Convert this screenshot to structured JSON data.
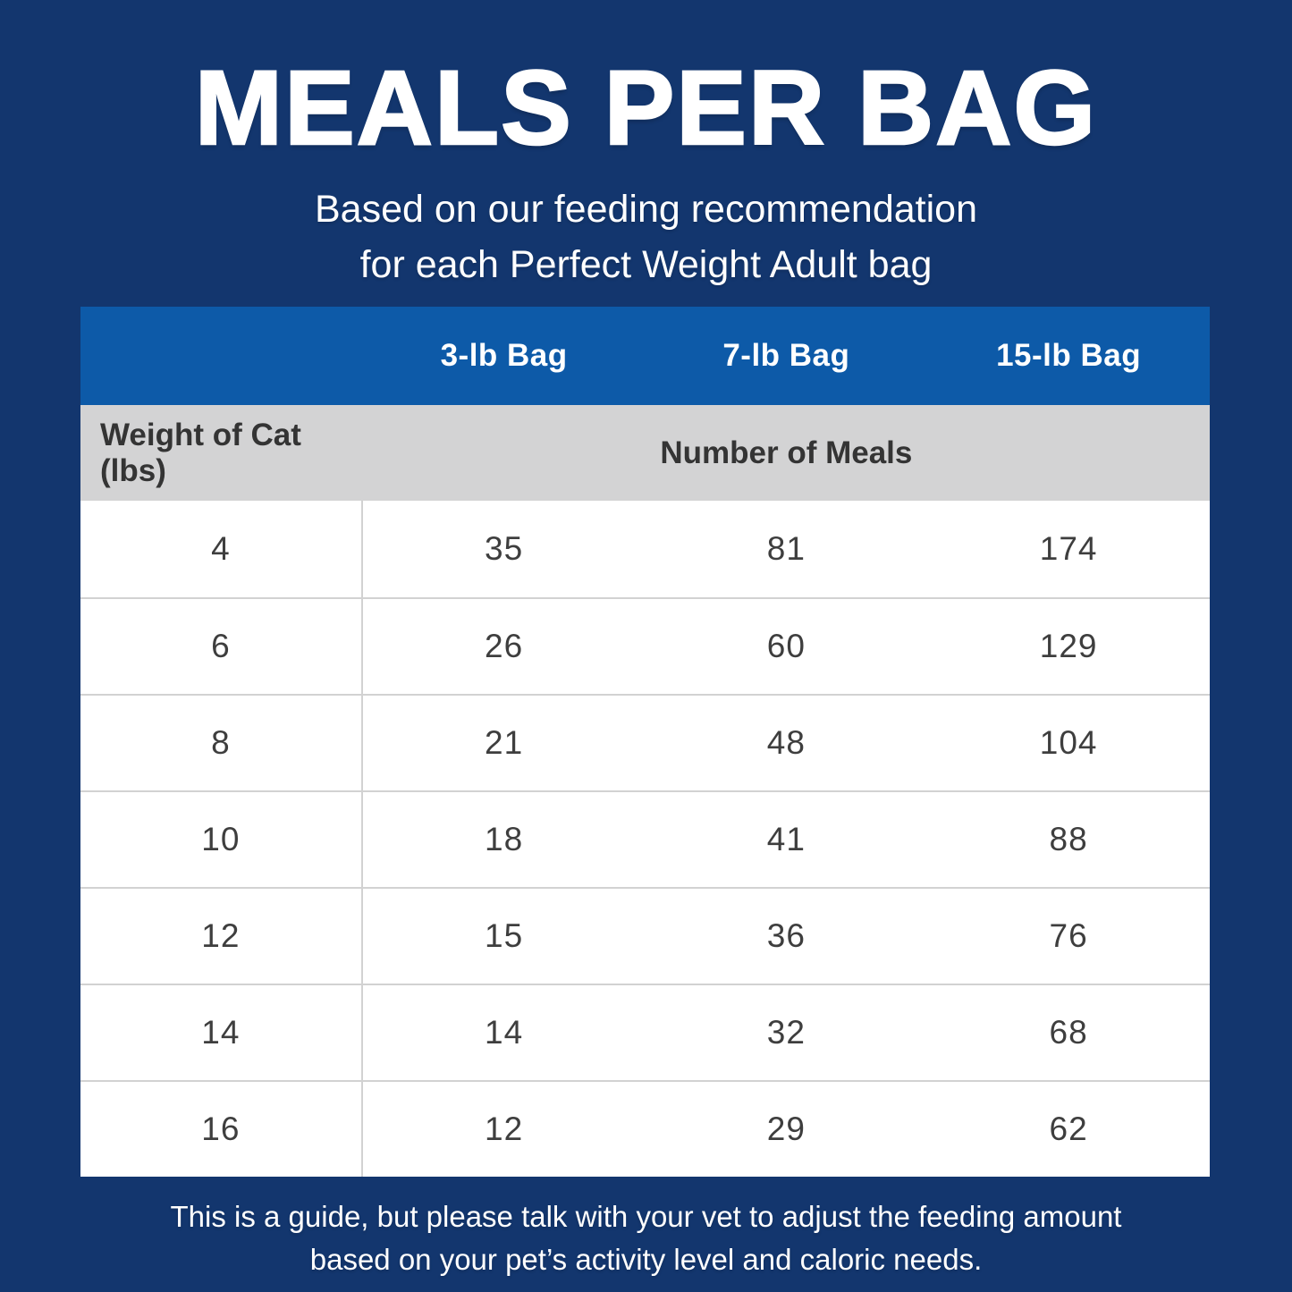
{
  "title": "MEALS PER BAG",
  "subtitle": {
    "line1": "Based on our feeding recommendation",
    "line2": "for each Perfect Weight Adult bag"
  },
  "table": {
    "bag_headers": [
      "3-lb Bag",
      "7-lb Bag",
      "15-lb Bag"
    ],
    "weight_header": "Weight of Cat (lbs)",
    "meals_header": "Number of Meals",
    "rows": [
      [
        "4",
        "35",
        "81",
        "174"
      ],
      [
        "6",
        "26",
        "60",
        "129"
      ],
      [
        "8",
        "21",
        "48",
        "104"
      ],
      [
        "10",
        "18",
        "41",
        "88"
      ],
      [
        "12",
        "15",
        "36",
        "76"
      ],
      [
        "14",
        "14",
        "32",
        "68"
      ],
      [
        "16",
        "12",
        "29",
        "62"
      ]
    ]
  },
  "footer": {
    "line1": "This is a guide, but please talk with your vet to adjust the feeding amount",
    "line2": "based on your pet’s activity level and caloric needs."
  },
  "colors": {
    "bg": "#13366e",
    "header_blue": "#0d5aa8",
    "subheader_gray": "#d3d3d4",
    "divider": "#d2d2d2",
    "text_dark": "#3e3e3e",
    "white": "#ffffff"
  },
  "chart_data": {
    "type": "table",
    "title": "MEALS PER BAG",
    "subtitle": "Based on our feeding recommendation for each Perfect Weight Adult bag",
    "columns": [
      "Weight of Cat (lbs)",
      "3-lb Bag",
      "7-lb Bag",
      "15-lb Bag"
    ],
    "rows": [
      [
        4,
        35,
        81,
        174
      ],
      [
        6,
        26,
        60,
        129
      ],
      [
        8,
        21,
        48,
        104
      ],
      [
        10,
        18,
        41,
        88
      ],
      [
        12,
        15,
        36,
        76
      ],
      [
        14,
        14,
        32,
        68
      ],
      [
        16,
        12,
        29,
        62
      ]
    ],
    "note": "This is a guide, but please talk with your vet to adjust the feeding amount based on your pet’s activity level and caloric needs."
  }
}
